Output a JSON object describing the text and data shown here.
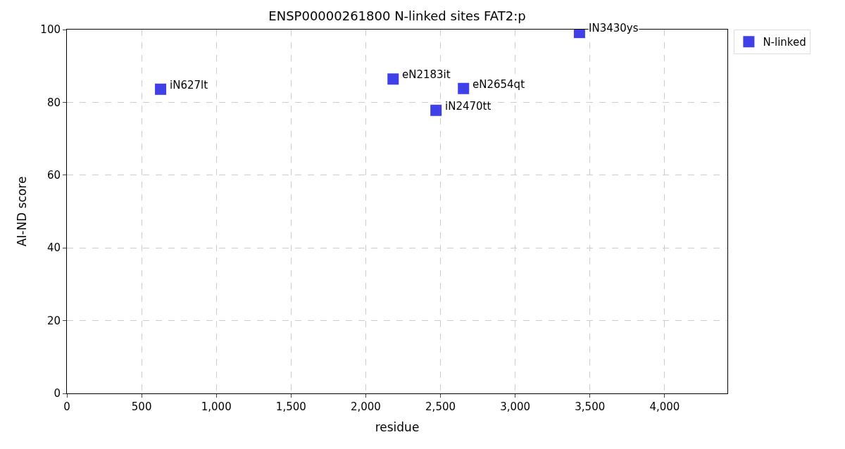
{
  "chart_data": {
    "type": "scatter",
    "title": "ENSP00000261800 N-linked sites FAT2:p",
    "xlabel": "residue",
    "ylabel": "AI-ND score",
    "x": [
      627,
      2183,
      2470,
      2654,
      3430
    ],
    "series": [
      {
        "name": "N-linked",
        "color": "#4040e8",
        "values": [
          83.6,
          86.4,
          77.8,
          83.8,
          99.2
        ]
      }
    ],
    "annotations": [
      {
        "text": "iN627lt",
        "x": 627,
        "y": 83.6
      },
      {
        "text": "eN2183it",
        "x": 2183,
        "y": 86.4
      },
      {
        "text": "iN2470tt",
        "x": 2470,
        "y": 77.8
      },
      {
        "text": "eN2654qt",
        "x": 2654,
        "y": 83.8
      },
      {
        "text": "IN3430ys",
        "x": 3430,
        "y": 99.2
      }
    ],
    "xlim": [
      0,
      4420
    ],
    "xticks": [
      0,
      {
        "value": 500,
        "label": "500"
      },
      {
        "value": 1000,
        "label": "1,000"
      },
      {
        "value": 1500,
        "label": "1,500"
      },
      {
        "value": 2000,
        "label": "2,000"
      },
      {
        "value": 2500,
        "label": "2,500"
      },
      {
        "value": 3000,
        "label": "3,000"
      },
      {
        "value": 3500,
        "label": "3,500"
      },
      {
        "value": 4000,
        "label": "4,000"
      }
    ],
    "ylim": [
      0,
      100
    ],
    "yticks": [
      0,
      20,
      40,
      60,
      80,
      100
    ],
    "grid": true,
    "legend": "top right",
    "marker": "square"
  }
}
